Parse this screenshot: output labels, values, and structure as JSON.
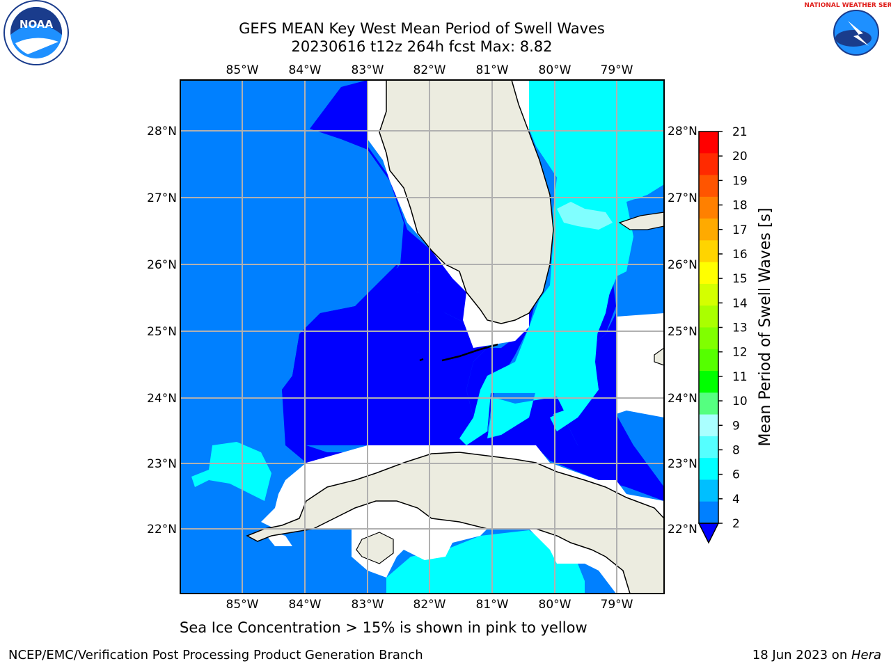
{
  "title_line1": "GEFS MEAN Key West Mean Period of Swell Waves",
  "title_line2": "20230616 t12z 264h fcst   Max: 8.82",
  "lon_labels": [
    "85°W",
    "84°W",
    "83°W",
    "82°W",
    "81°W",
    "80°W",
    "79°W"
  ],
  "lat_labels": [
    "28°N",
    "27°N",
    "26°N",
    "25°N",
    "24°N",
    "23°N",
    "22°N"
  ],
  "colorbar": {
    "label": "Mean Period of Swell Waves [s]",
    "ticks": [
      "21",
      "20",
      "19",
      "18",
      "17",
      "16",
      "15",
      "14",
      "13",
      "12",
      "11",
      "10",
      "9",
      "8",
      "6",
      "4",
      "2"
    ],
    "colors": [
      "#ff0000",
      "#ff2a00",
      "#ff5500",
      "#ff8000",
      "#ffaa00",
      "#ffd400",
      "#ffff00",
      "#d4ff00",
      "#aaff00",
      "#80ff00",
      "#55ff00",
      "#00ff00",
      "#55ff80",
      "#aaffff",
      "#55ffff",
      "#00ffff",
      "#00bfff",
      "#0080ff",
      "#0000ff"
    ]
  },
  "ice_note": "Sea Ice Concentration > 15% is shown in pink to yellow",
  "footer": {
    "left": "NCEP/EMC/Verification Post Processing Product Generation Branch",
    "date": "18 Jun 2023 on ",
    "host": "Hera"
  },
  "logos": {
    "left": "NOAA",
    "right": "NATIONAL WEATHER SERVICE"
  }
}
